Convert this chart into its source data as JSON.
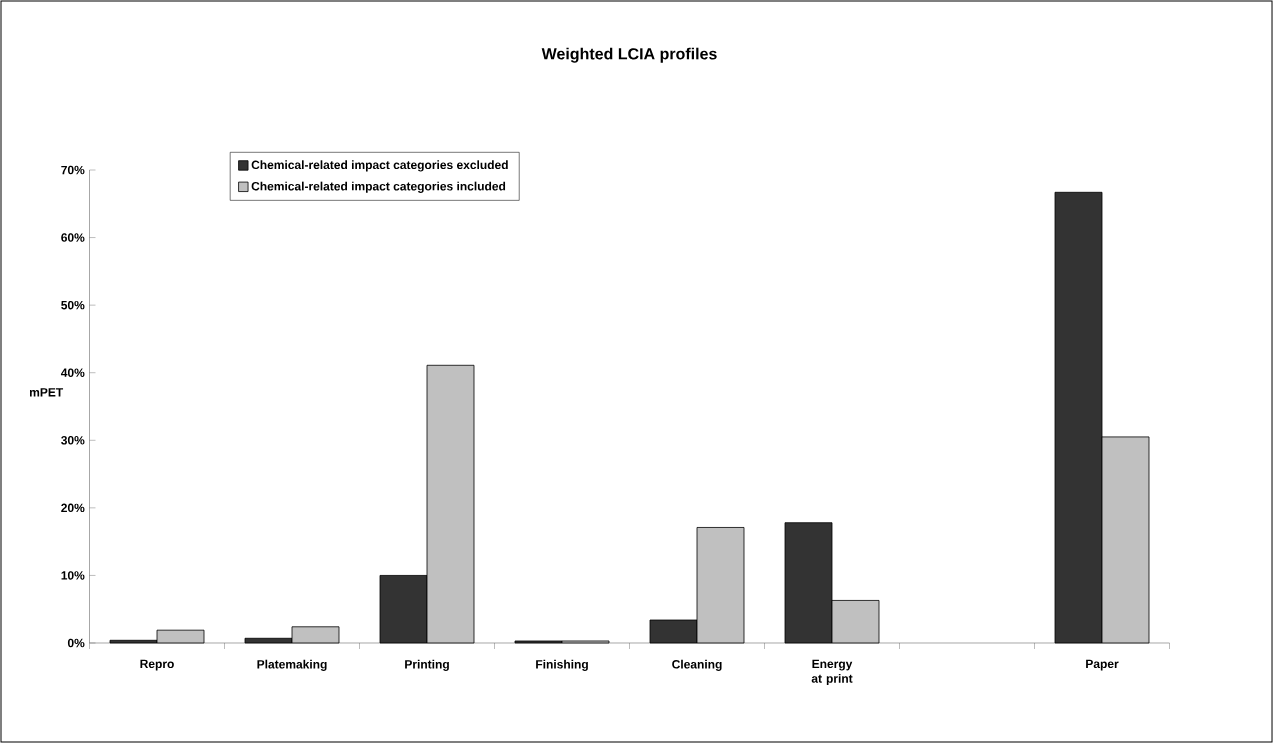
{
  "chart_data": {
    "type": "bar",
    "title": "Weighted LCIA profiles",
    "ylabel": "mPET",
    "categories": [
      "Repro",
      "Platemaking",
      "Printing",
      "Finishing",
      "Cleaning",
      "Energy at print",
      null,
      "Paper"
    ],
    "series": [
      {
        "name": "Chemical-related impact categories excluded",
        "color": "#333333",
        "values": [
          0.4,
          0.7,
          10.0,
          0.3,
          3.4,
          17.8,
          null,
          66.7
        ]
      },
      {
        "name": "Chemical-related impact categories included",
        "color": "#c0c0c0",
        "values": [
          1.9,
          2.4,
          41.1,
          0.3,
          17.1,
          6.3,
          null,
          30.5
        ]
      }
    ],
    "ylim": [
      0,
      70
    ],
    "yticks": [
      {
        "value": 0,
        "label": "0%"
      },
      {
        "value": 10,
        "label": "10%"
      },
      {
        "value": 20,
        "label": "20%"
      },
      {
        "value": 30,
        "label": "30%"
      },
      {
        "value": 40,
        "label": "40%"
      },
      {
        "value": 50,
        "label": "50%"
      },
      {
        "value": 60,
        "label": "60%"
      },
      {
        "value": 70,
        "label": "70%"
      }
    ],
    "grid": false,
    "legend": "top left"
  }
}
